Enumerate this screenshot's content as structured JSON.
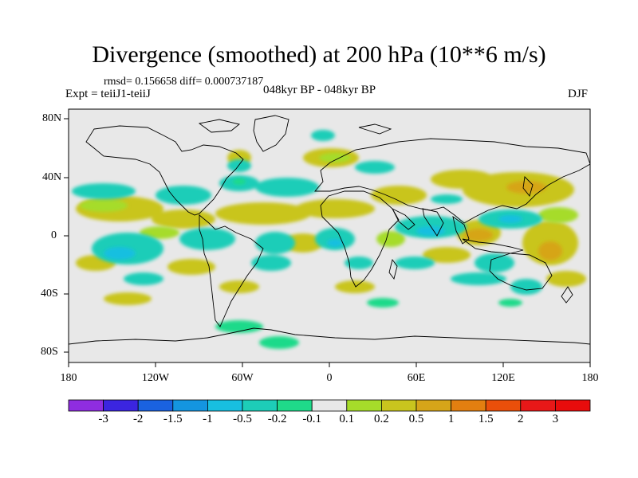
{
  "title": "Divergence (smoothed) at 200 hPa (10**6 m/s)",
  "stats": "rmsd= 0.156658 diff= 0.000737187",
  "experiment": "Expt = teiiJ1-teiiJ",
  "period": "048kyr BP - 048kyr BP",
  "season": "DJF",
  "map": {
    "projection": "cylindrical equidistant",
    "lon_labels": [
      "180",
      "120W",
      "60W",
      "0",
      "60E",
      "120E",
      "180"
    ],
    "lat_labels": [
      "80N",
      "40N",
      "0",
      "40S",
      "80S"
    ],
    "background_color": "#e8e8e8",
    "coastline_color": "#000000"
  },
  "colorbar": {
    "labels": [
      "-3",
      "-2",
      "-1.5",
      "-1",
      "-0.5",
      "-0.2",
      "-0.1",
      "0.1",
      "0.2",
      "0.5",
      "1",
      "1.5",
      "2",
      "3"
    ],
    "colors": [
      "#8f2de0",
      "#3b25e0",
      "#1a62e0",
      "#1495e0",
      "#18bfe0",
      "#1dcdb8",
      "#1fda8a",
      "#e8e8e8",
      "#a6dc2a",
      "#c9c51e",
      "#d6a519",
      "#e37f10",
      "#ea4f0a",
      "#e81818",
      "#e80c0c"
    ]
  }
}
